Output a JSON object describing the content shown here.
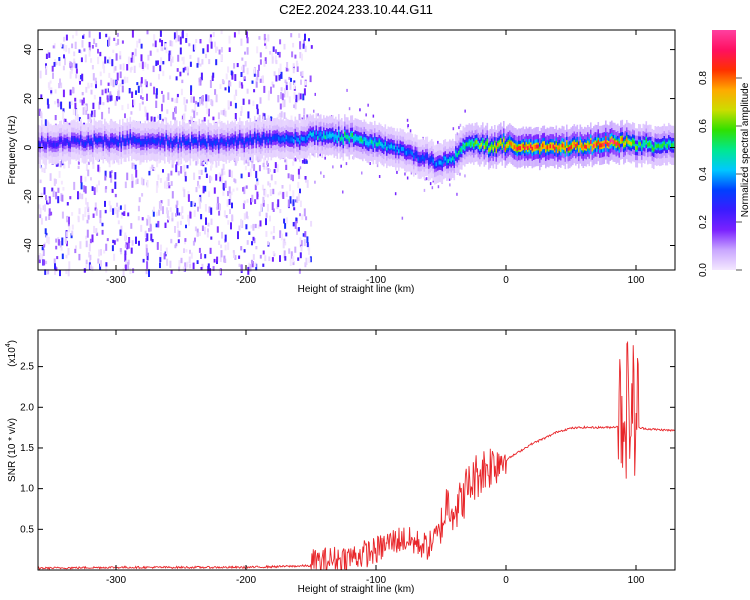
{
  "title": "C2E2.2024.233.10.44.G11",
  "chart_data": [
    {
      "type": "heatmap",
      "xlabel": "Height of straight line (km)",
      "ylabel": "Frequency (Hz)",
      "xlim": [
        -360,
        130
      ],
      "ylim": [
        -50,
        48
      ],
      "xticks": [
        -300,
        -200,
        -100,
        0,
        100
      ],
      "yticks": [
        -40,
        -20,
        0,
        20,
        40
      ],
      "colorbar": {
        "label": "Normalized spectral amplitude",
        "range": [
          0,
          1
        ],
        "ticks": [
          "0.0",
          "0.2",
          "0.4",
          "0.6",
          "0.8"
        ],
        "colors": [
          "#f4e8ff",
          "#c9a6ff",
          "#7a22ff",
          "#3a1cff",
          "#0040ff",
          "#00c8ff",
          "#00e890",
          "#30e000",
          "#ccdd00",
          "#ffaa00",
          "#ff3000",
          "#ff1060",
          "#ff40a0"
        ]
      },
      "ridge": {
        "x": [
          -360,
          -300,
          -250,
          -200,
          -160,
          -140,
          -120,
          -100,
          -80,
          -60,
          -50,
          -40,
          -30,
          -20,
          0,
          20,
          40,
          60,
          80,
          90,
          100,
          130
        ],
        "frequency": [
          2,
          3,
          2,
          3,
          4,
          5,
          4,
          2,
          -1,
          -5,
          -7,
          -4,
          2,
          1,
          1,
          0,
          0,
          1,
          2,
          2,
          1,
          1
        ],
        "amplitude": [
          0.25,
          0.3,
          0.3,
          0.3,
          0.35,
          0.45,
          0.5,
          0.45,
          0.35,
          0.3,
          0.4,
          0.45,
          0.5,
          0.6,
          0.75,
          0.85,
          0.8,
          0.8,
          0.9,
          0.75,
          0.55,
          0.5
        ]
      },
      "noise_extent_x": [
        -360,
        -160
      ]
    },
    {
      "type": "line",
      "xlabel": "Height of straight line (km)",
      "ylabel": "SNR (10 * v/v)",
      "exponent_label": "(x10",
      "exponent": "4",
      "exponent_close": ")",
      "xlim": [
        -360,
        130
      ],
      "ylim": [
        0,
        2.95
      ],
      "xticks": [
        -300,
        -200,
        -100,
        0,
        100
      ],
      "yticks": [
        "0.5",
        "1.0",
        "1.5",
        "2.0",
        "2.5"
      ],
      "color": "#e8262a",
      "series": [
        {
          "x": [
            -360,
            -300,
            -200,
            -150,
            -120,
            -100,
            -90,
            -80,
            -70,
            -60,
            -50,
            -45,
            -40,
            -35,
            -30,
            -20,
            -10,
            0,
            10,
            20,
            30,
            40,
            50,
            60,
            70,
            80,
            85,
            90,
            95,
            100,
            105,
            110,
            120,
            130
          ],
          "y": [
            0.02,
            0.03,
            0.03,
            0.05,
            0.12,
            0.2,
            0.3,
            0.35,
            0.3,
            0.25,
            0.45,
            0.8,
            0.7,
            0.75,
            0.95,
            1.15,
            1.25,
            1.35,
            1.45,
            1.55,
            1.62,
            1.7,
            1.74,
            1.75,
            1.75,
            1.75,
            1.76,
            1.8,
            1.85,
            1.75,
            1.74,
            1.73,
            1.72,
            1.71
          ]
        }
      ],
      "noise": [
        {
          "x_range": [
            -150,
            -50
          ],
          "amplitude": 0.35
        },
        {
          "x_range": [
            -50,
            0
          ],
          "amplitude": 0.6
        },
        {
          "x_range": [
            86,
            102
          ],
          "amplitude": 1.5
        }
      ]
    }
  ]
}
